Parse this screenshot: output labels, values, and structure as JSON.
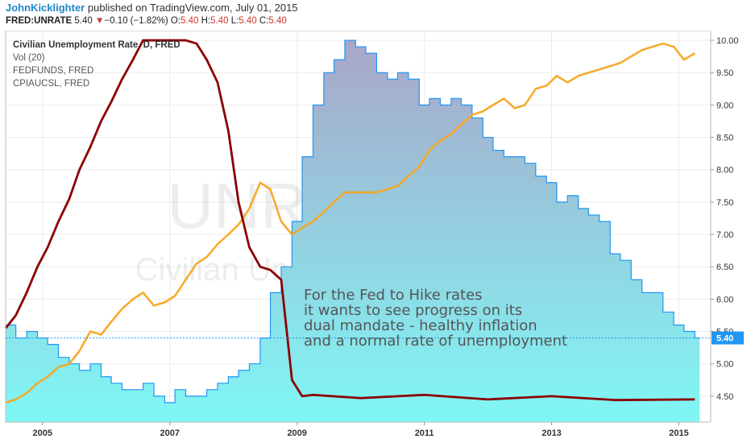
{
  "header": {
    "author": "JohnKicklighter",
    "published_text": "published on TradingView.com, July 01, 2015",
    "symbol": "FRED:UNRATE",
    "last": "5.40",
    "change_arrow": "▼",
    "change": "−0.10 (−1.82%)",
    "o_label": "O:",
    "o_value": "5.40",
    "h_label": "H:",
    "h_value": "5.40",
    "l_label": "L:",
    "l_value": "5.40",
    "c_label": "C:",
    "c_value": "5.40"
  },
  "legend": {
    "title": "Civilian Unemployment Rate, D, FRED",
    "items": [
      "Vol (20)",
      "FEDFUNDS, FRED",
      "CPIAUCSL, FRED"
    ]
  },
  "watermark": {
    "line1": "UNRATE, D",
    "line2": "Civilian Unemployment Rate"
  },
  "annotation": [
    "For the Fed to Hike rates",
    "it wants to see progress on its",
    "dual mandate - healthy inflation",
    "and a normal rate of unemployment"
  ],
  "colors": {
    "unrate_fill_top": "#a8a8c8",
    "unrate_fill_bottom": "#7ff7f5",
    "unrate_line": "#2196f3",
    "fedfunds": "#8b0000",
    "cpi": "#f5a623",
    "price_tag": "#2196f3"
  },
  "chart_data": {
    "type": "line",
    "title": "Civilian Unemployment Rate, D, FRED",
    "x_ticks": [
      "2005",
      "2007",
      "2009",
      "2011",
      "2013",
      "2015"
    ],
    "y_ticks": [
      "10.00",
      "9.50",
      "9.00",
      "8.50",
      "8.00",
      "7.50",
      "7.00",
      "6.50",
      "6.00",
      "5.50",
      "5.00",
      "4.50"
    ],
    "ylim": [
      4.1,
      10.15
    ],
    "xlim": [
      2004.42,
      2015.5
    ],
    "last_value_label": "5.40",
    "last_value": 5.4,
    "series": [
      {
        "name": "UNRATE",
        "style": "area",
        "x": [
          2004.42,
          2004.58,
          2004.75,
          2004.92,
          2005.08,
          2005.25,
          2005.42,
          2005.58,
          2005.75,
          2005.92,
          2006.08,
          2006.25,
          2006.42,
          2006.58,
          2006.75,
          2006.92,
          2007.08,
          2007.25,
          2007.42,
          2007.58,
          2007.75,
          2007.92,
          2008.08,
          2008.25,
          2008.42,
          2008.58,
          2008.75,
          2008.92,
          2009.08,
          2009.25,
          2009.42,
          2009.58,
          2009.75,
          2009.92,
          2010.08,
          2010.25,
          2010.42,
          2010.58,
          2010.75,
          2010.92,
          2011.08,
          2011.25,
          2011.42,
          2011.58,
          2011.75,
          2011.92,
          2012.08,
          2012.25,
          2012.42,
          2012.58,
          2012.75,
          2012.92,
          2013.08,
          2013.25,
          2013.42,
          2013.58,
          2013.75,
          2013.92,
          2014.08,
          2014.25,
          2014.42,
          2014.58,
          2014.75,
          2014.92,
          2015.08,
          2015.25
        ],
        "values": [
          5.6,
          5.4,
          5.5,
          5.4,
          5.3,
          5.1,
          5.0,
          4.9,
          5.0,
          4.8,
          4.7,
          4.6,
          4.6,
          4.7,
          4.5,
          4.4,
          4.6,
          4.5,
          4.5,
          4.6,
          4.7,
          4.8,
          4.9,
          5.0,
          5.4,
          6.1,
          6.5,
          7.2,
          8.2,
          9.0,
          9.5,
          9.7,
          10.0,
          9.9,
          9.8,
          9.5,
          9.4,
          9.5,
          9.4,
          9.0,
          9.1,
          9.0,
          9.1,
          9.0,
          8.8,
          8.5,
          8.3,
          8.2,
          8.2,
          8.1,
          7.9,
          7.8,
          7.5,
          7.6,
          7.4,
          7.3,
          7.2,
          6.7,
          6.6,
          6.3,
          6.1,
          6.1,
          5.8,
          5.6,
          5.5,
          5.4
        ]
      },
      {
        "name": "FEDFUNDS",
        "style": "line",
        "x": [
          2004.42,
          2004.58,
          2004.75,
          2004.92,
          2005.08,
          2005.25,
          2005.42,
          2005.58,
          2005.75,
          2005.92,
          2006.08,
          2006.25,
          2006.42,
          2006.58,
          2007.25,
          2007.42,
          2007.58,
          2007.75,
          2007.92,
          2008.08,
          2008.25,
          2008.42,
          2008.58,
          2008.75,
          2008.92,
          2009.08,
          2009.25,
          2010.0,
          2011.0,
          2012.0,
          2013.0,
          2014.0,
          2015.25
        ],
        "values": [
          5.55,
          5.75,
          6.1,
          6.5,
          6.8,
          7.2,
          7.55,
          8.0,
          8.35,
          8.75,
          9.05,
          9.4,
          9.7,
          10.0,
          10.0,
          9.95,
          9.7,
          9.35,
          8.6,
          7.5,
          6.8,
          6.5,
          6.45,
          6.3,
          4.75,
          4.5,
          4.52,
          4.47,
          4.52,
          4.45,
          4.5,
          4.44,
          4.45
        ]
      },
      {
        "name": "CPIAUCSL",
        "style": "line",
        "x": [
          2004.42,
          2004.58,
          2004.75,
          2004.92,
          2005.08,
          2005.25,
          2005.42,
          2005.58,
          2005.75,
          2005.92,
          2006.08,
          2006.25,
          2006.42,
          2006.58,
          2006.75,
          2006.92,
          2007.08,
          2007.25,
          2007.42,
          2007.58,
          2007.75,
          2007.92,
          2008.08,
          2008.25,
          2008.42,
          2008.58,
          2008.75,
          2008.92,
          2009.08,
          2009.25,
          2009.42,
          2009.58,
          2009.75,
          2009.92,
          2010.08,
          2010.25,
          2010.42,
          2010.58,
          2010.75,
          2010.92,
          2011.08,
          2011.25,
          2011.42,
          2011.58,
          2011.75,
          2011.92,
          2012.08,
          2012.25,
          2012.42,
          2012.58,
          2012.75,
          2012.92,
          2013.08,
          2013.25,
          2013.42,
          2013.58,
          2013.75,
          2013.92,
          2014.08,
          2014.25,
          2014.42,
          2014.58,
          2014.75,
          2014.92,
          2015.08,
          2015.25
        ],
        "values": [
          4.4,
          4.45,
          4.55,
          4.7,
          4.8,
          4.95,
          5.0,
          5.2,
          5.5,
          5.45,
          5.65,
          5.85,
          6.0,
          6.1,
          5.9,
          5.95,
          6.05,
          6.3,
          6.55,
          6.65,
          6.85,
          7.0,
          7.15,
          7.4,
          7.8,
          7.7,
          7.2,
          7.0,
          7.1,
          7.2,
          7.35,
          7.5,
          7.65,
          7.65,
          7.65,
          7.65,
          7.7,
          7.75,
          7.9,
          8.05,
          8.3,
          8.45,
          8.55,
          8.7,
          8.85,
          8.9,
          9.0,
          9.1,
          8.95,
          9.0,
          9.25,
          9.3,
          9.45,
          9.35,
          9.45,
          9.5,
          9.55,
          9.6,
          9.65,
          9.75,
          9.85,
          9.9,
          9.95,
          9.9,
          9.7,
          9.8
        ]
      }
    ]
  }
}
